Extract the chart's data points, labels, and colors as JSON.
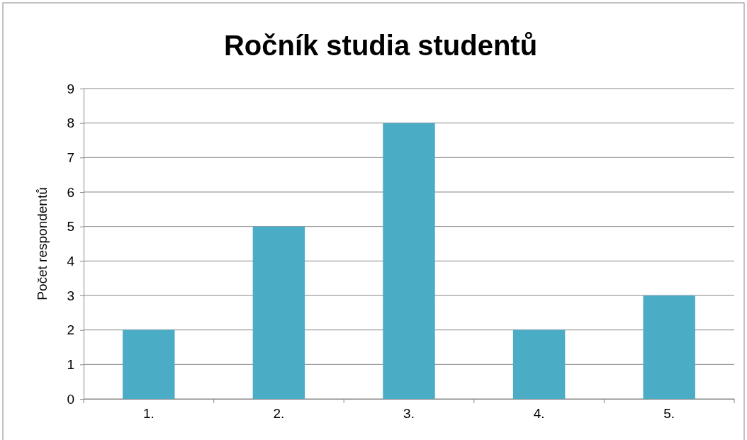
{
  "chart_data": {
    "type": "bar",
    "title": "Ročník studia studentů",
    "ylabel": "Počet respondentů",
    "categories": [
      "1.",
      "2.",
      "3.",
      "4.",
      "5."
    ],
    "values": [
      2,
      5,
      8,
      2,
      3
    ],
    "color": "#4bacc6",
    "ylim": [
      0,
      9
    ],
    "yticks": [
      0,
      1,
      2,
      3,
      4,
      5,
      6,
      7,
      8,
      9
    ],
    "grid": "y"
  }
}
